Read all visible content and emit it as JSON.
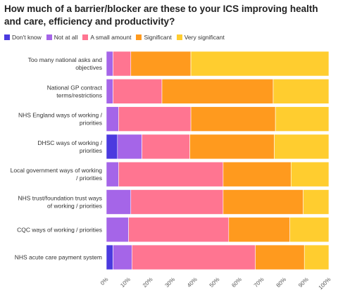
{
  "title": "How much of a barrier/blocker are these to your ICS improving health and care, efficiency and productivity?",
  "chart_data": {
    "type": "bar",
    "orientation": "horizontal",
    "stacked": true,
    "title": "How much of a barrier/blocker are these to your ICS improving health and care, efficiency and productivity?",
    "legend_position": "top-left",
    "xlim": [
      0,
      100
    ],
    "x_ticks": [
      "0%",
      "10%",
      "20%",
      "30%",
      "40%",
      "50%",
      "60%",
      "70%",
      "80%",
      "90%",
      "100%"
    ],
    "categories": [
      "Too many national asks and objectives",
      "National GP contract terms/restrictions",
      "NHS England ways of working / priorities",
      "DHSC ways of working / priorities",
      "Local government ways of working / priorities",
      "NHS trust/foundation trust ways of working / priorities",
      "CQC ways of working / priorities",
      "NHS acute care payment system"
    ],
    "series": [
      {
        "name": "Don't know",
        "color": "#4b3adf",
        "values": [
          0,
          0,
          0,
          5,
          0,
          0,
          0,
          3
        ]
      },
      {
        "name": "Not at all",
        "color": "#a565e8",
        "values": [
          3,
          3,
          5.5,
          11,
          5.5,
          11,
          10,
          8.5
        ]
      },
      {
        "name": "A small amount",
        "color": "#ff7591",
        "values": [
          8,
          22,
          32.5,
          21.5,
          47,
          41.5,
          45,
          55.5
        ]
      },
      {
        "name": "Significant",
        "color": "#ff9a1e",
        "values": [
          27,
          50,
          38,
          38,
          30.5,
          36,
          27.5,
          22
        ]
      },
      {
        "name": "Very significant",
        "color": "#ffcd2f",
        "values": [
          62,
          25,
          24,
          24.5,
          17,
          11.5,
          17.5,
          11
        ]
      }
    ]
  }
}
